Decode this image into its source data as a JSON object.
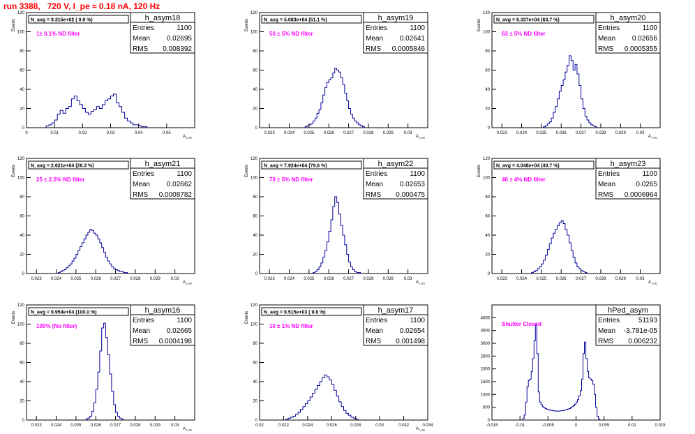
{
  "page_title": "run 3388,   720 V, I_pe ≈ 0.18 nA, 120 Hz",
  "style": {
    "hist_line": "#000099",
    "note_color": "#ff00ff",
    "title_color": "#ff0000",
    "frame": "#000000"
  },
  "stat_labels": {
    "entries": "Entries",
    "mean": "Mean",
    "rms": "RMS"
  },
  "chart_data": [
    {
      "type": "bar",
      "title": "h_asym18",
      "navg": "N_avg = 9.315e+02 ( 0.9 %)",
      "note": "1± 0.1% ND filter",
      "stats": {
        "entries": "1100",
        "mean": "0.02695",
        "rms": "0.008392"
      },
      "ylabel": "Events",
      "xlabel": "A_LUD",
      "xlim": [
        0,
        0.06
      ],
      "ylim": [
        0,
        120
      ],
      "xticks": [
        "0",
        "0.01",
        "0.02",
        "0.03",
        "0.04",
        "0.05"
      ],
      "yticks": [
        "0",
        "20",
        "40",
        "60",
        "80",
        "100",
        "120"
      ],
      "bins": {
        "start": 0.007,
        "width": 0.001,
        "values": [
          2,
          3,
          5,
          8,
          14,
          18,
          15,
          20,
          22,
          30,
          33,
          28,
          24,
          20,
          16,
          14,
          17,
          19,
          22,
          20,
          24,
          28,
          30,
          33,
          35,
          26,
          22,
          16,
          10,
          7,
          5,
          3,
          3,
          2,
          1,
          1
        ]
      }
    },
    {
      "type": "bar",
      "title": "h_asym19",
      "navg": "N_avg = 5.083e+04 (51.1 %)",
      "note": "50 ± 5% ND filter",
      "stats": {
        "entries": "1100",
        "mean": "0.02641",
        "rms": "0.0005846"
      },
      "ylabel": "Events",
      "xlabel": "A_LUD",
      "xlim": [
        0.0225,
        0.031
      ],
      "ylim": [
        0,
        120
      ],
      "xticks": [
        "0.023",
        "0.024",
        "0.025",
        "0.026",
        "0.027",
        "0.028",
        "0.029",
        "0.03"
      ],
      "yticks": [
        "0",
        "20",
        "40",
        "60",
        "80",
        "100",
        "120"
      ],
      "bins": {
        "start": 0.0248,
        "width": 0.0001,
        "values": [
          1,
          2,
          3,
          4,
          7,
          10,
          15,
          19,
          26,
          34,
          42,
          47,
          50,
          52,
          57,
          62,
          60,
          58,
          52,
          45,
          36,
          28,
          20,
          14,
          10,
          7,
          5,
          3,
          2,
          1
        ]
      }
    },
    {
      "type": "bar",
      "title": "h_asym20",
      "navg": "N_avg = 6.337e+04 (63.7 %)",
      "note": "63 ± 5% ND filter",
      "stats": {
        "entries": "1100",
        "mean": "0.02656",
        "rms": "0.0005355"
      },
      "ylabel": "Events",
      "xlabel": "A_LUD",
      "xlim": [
        0.0225,
        0.031
      ],
      "ylim": [
        0,
        120
      ],
      "xticks": [
        "0.023",
        "0.024",
        "0.025",
        "0.026",
        "0.027",
        "0.028",
        "0.029",
        "0.03"
      ],
      "yticks": [
        "0",
        "20",
        "40",
        "60",
        "80",
        "100",
        "120"
      ],
      "bins": {
        "start": 0.0251,
        "width": 0.0001,
        "values": [
          1,
          2,
          4,
          6,
          10,
          16,
          22,
          30,
          38,
          44,
          50,
          58,
          65,
          75,
          70,
          60,
          66,
          56,
          44,
          30,
          20,
          12,
          8,
          5,
          3,
          2,
          1
        ]
      }
    },
    {
      "type": "bar",
      "title": "h_asym21",
      "navg": "N_avg = 2.621e+04 (26.3 %)",
      "note": "25 ± 2.5% ND filter",
      "stats": {
        "entries": "1100",
        "mean": "0.02662",
        "rms": "0.0008782"
      },
      "ylabel": "Events",
      "xlabel": "A_LUD",
      "xlim": [
        0.0225,
        0.031
      ],
      "ylim": [
        0,
        120
      ],
      "xticks": [
        "0.023",
        "0.024",
        "0.025",
        "0.026",
        "0.027",
        "0.028",
        "0.029",
        "0.03"
      ],
      "yticks": [
        "0",
        "20",
        "40",
        "60",
        "80",
        "100",
        "120"
      ],
      "bins": {
        "start": 0.0241,
        "width": 0.0001,
        "values": [
          1,
          2,
          3,
          4,
          6,
          8,
          10,
          13,
          16,
          20,
          24,
          28,
          32,
          36,
          40,
          43,
          46,
          45,
          42,
          40,
          36,
          32,
          27,
          22,
          17,
          13,
          10,
          7,
          5,
          4,
          3,
          2,
          2,
          1,
          1
        ]
      }
    },
    {
      "type": "bar",
      "title": "h_asym22",
      "navg": "N_avg = 7.924e+04 (79.6 %)",
      "note": "79 ± 5% ND filter",
      "stats": {
        "entries": "1100",
        "mean": "0.02653",
        "rms": "0.000475"
      },
      "ylabel": "Events",
      "xlabel": "A_LUD",
      "xlim": [
        0.0225,
        0.031
      ],
      "ylim": [
        0,
        120
      ],
      "xticks": [
        "0.023",
        "0.024",
        "0.025",
        "0.026",
        "0.027",
        "0.028",
        "0.029",
        "0.03"
      ],
      "yticks": [
        "0",
        "20",
        "40",
        "60",
        "80",
        "100",
        "120"
      ],
      "bins": {
        "start": 0.0252,
        "width": 0.0001,
        "values": [
          1,
          2,
          4,
          7,
          11,
          17,
          24,
          33,
          44,
          56,
          70,
          80,
          74,
          62,
          50,
          40,
          30,
          20,
          12,
          7,
          4,
          2,
          1,
          1
        ]
      }
    },
    {
      "type": "bar",
      "title": "h_asym23",
      "navg": "N_avg = 4.048e+04 (40.7 %)",
      "note": "40 ± 4% ND filter",
      "stats": {
        "entries": "1100",
        "mean": "0.0265",
        "rms": "0.0006964"
      },
      "ylabel": "Events",
      "xlabel": "A_LUD",
      "xlim": [
        0.0225,
        0.031
      ],
      "ylim": [
        0,
        120
      ],
      "xticks": [
        "0.023",
        "0.024",
        "0.025",
        "0.026",
        "0.027",
        "0.028",
        "0.029",
        "0.03"
      ],
      "yticks": [
        "0",
        "20",
        "40",
        "60",
        "80",
        "100",
        "120"
      ],
      "bins": {
        "start": 0.0245,
        "width": 0.0001,
        "values": [
          1,
          2,
          3,
          5,
          7,
          10,
          14,
          19,
          25,
          31,
          37,
          42,
          46,
          50,
          53,
          55,
          52,
          46,
          40,
          32,
          24,
          17,
          11,
          7,
          5,
          3,
          2,
          1
        ]
      }
    },
    {
      "type": "bar",
      "title": "h_asym16",
      "navg": "N_avg = 9.954e+04 (100.0 %)",
      "note": "100% (No filter)",
      "stats": {
        "entries": "1100",
        "mean": "0.02665",
        "rms": "0.0004198"
      },
      "ylabel": "Events",
      "xlabel": "A_LUD",
      "xlim": [
        0.0225,
        0.031
      ],
      "ylim": [
        0,
        120
      ],
      "xticks": [
        "0.023",
        "0.024",
        "0.025",
        "0.026",
        "0.027",
        "0.028",
        "0.029",
        "0.03"
      ],
      "yticks": [
        "0",
        "20",
        "40",
        "60",
        "80",
        "100",
        "120"
      ],
      "bins": {
        "start": 0.0255,
        "width": 0.0001,
        "values": [
          1,
          2,
          4,
          9,
          18,
          32,
          50,
          72,
          96,
          101,
          86,
          68,
          48,
          30,
          16,
          8,
          4,
          2,
          1
        ]
      }
    },
    {
      "type": "bar",
      "title": "h_asym17",
      "navg": "N_avg = 9.515e+03 ( 9.6 %)",
      "note": "10 ± 1% ND filter",
      "stats": {
        "entries": "1100",
        "mean": "0.02654",
        "rms": "0.001498"
      },
      "ylabel": "Events",
      "xlabel": "A_LUD",
      "xlim": [
        0.02,
        0.034
      ],
      "ylim": [
        0,
        120
      ],
      "xticks": [
        "0.02",
        "0.022",
        "0.024",
        "0.026",
        "0.028",
        "0.03",
        "0.032",
        "0.034"
      ],
      "yticks": [
        "0",
        "20",
        "40",
        "60",
        "80",
        "100",
        "120"
      ],
      "bins": {
        "start": 0.0222,
        "width": 0.0002,
        "values": [
          1,
          2,
          3,
          4,
          6,
          8,
          11,
          14,
          17,
          20,
          24,
          28,
          32,
          36,
          40,
          44,
          47,
          45,
          42,
          37,
          31,
          25,
          19,
          14,
          10,
          7,
          5,
          3,
          2,
          1
        ]
      }
    },
    {
      "type": "bar",
      "title": "hPed_asym",
      "navg": "",
      "note": "Shutter Closed",
      "stats": {
        "entries": "51193",
        "mean": "-3.781e-05",
        "rms": "0.006232"
      },
      "ylabel": "",
      "xlabel": "",
      "xlim": [
        -0.015,
        0.015
      ],
      "ylim": [
        0,
        4500
      ],
      "xticks": [
        "-0.015",
        "-0.01",
        "-0.005",
        "0",
        "0.005",
        "0.01",
        "0.015"
      ],
      "yticks": [
        "0",
        "500",
        "1000",
        "1500",
        "2000",
        "2500",
        "3000",
        "3500",
        "4000"
      ],
      "bins": {
        "start": -0.0095,
        "width": 0.00025,
        "values": [
          60,
          200,
          700,
          1300,
          1550,
          1600,
          1900,
          2400,
          3100,
          3750,
          2600,
          1100,
          700,
          600,
          520,
          480,
          450,
          420,
          400,
          390,
          380,
          370,
          360,
          355,
          350,
          350,
          355,
          360,
          370,
          380,
          395,
          410,
          430,
          450,
          480,
          520,
          560,
          620,
          700,
          800,
          950,
          1150,
          1600,
          2600,
          3050,
          2400,
          1900,
          1650,
          1600,
          1550,
          1400,
          1000,
          500,
          150,
          40
        ]
      }
    }
  ]
}
